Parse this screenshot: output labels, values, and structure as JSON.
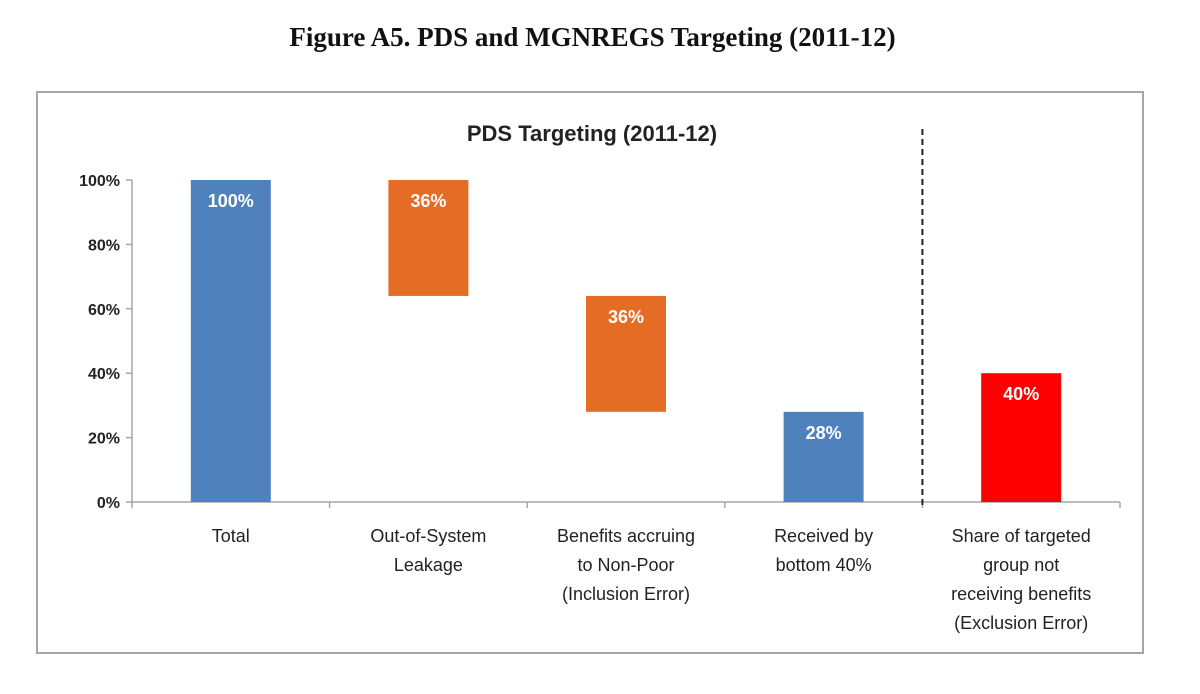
{
  "figure_title": "Figure A5. PDS and MGNREGS Targeting (2011-12)",
  "chart_data": {
    "type": "bar",
    "subtype": "waterfall",
    "title": "PDS Targeting (2011-12)",
    "xlabel": "",
    "ylabel": "",
    "ylim": [
      0,
      100
    ],
    "y_ticks": [
      "0%",
      "20%",
      "40%",
      "60%",
      "80%",
      "100%"
    ],
    "grid": false,
    "legend": "none",
    "categories": [
      [
        "Total"
      ],
      [
        "Out-of-System",
        "Leakage"
      ],
      [
        "Benefits accruing",
        "to Non-Poor",
        "(Inclusion Error)"
      ],
      [
        "Received by",
        "bottom 40%"
      ],
      [
        "Share of targeted",
        "group not",
        "receiving benefits",
        "(Exclusion Error)"
      ]
    ],
    "bars": [
      {
        "base": 0,
        "value": 100,
        "label": "100%",
        "color": "#4f81bd"
      },
      {
        "base": 64,
        "value": 36,
        "label": "36%",
        "color": "#e46c24"
      },
      {
        "base": 28,
        "value": 36,
        "label": "36%",
        "color": "#e46c24"
      },
      {
        "base": 0,
        "value": 28,
        "label": "28%",
        "color": "#4f81bd"
      },
      {
        "base": 0,
        "value": 40,
        "label": "40%",
        "color": "#ff0000"
      }
    ],
    "separator": "dashed vertical line between 4th and 5th categories"
  }
}
